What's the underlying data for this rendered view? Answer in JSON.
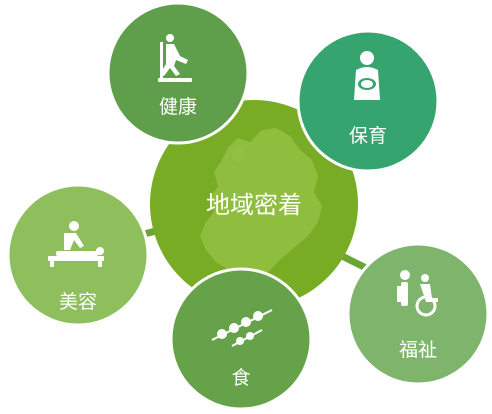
{
  "center": {
    "label": "地域密着",
    "color": "#79ac25",
    "map_color": "#93c143"
  },
  "nodes": [
    {
      "id": "health",
      "label": "健康",
      "icon": "treadmill-icon",
      "color": "#5f9f4c"
    },
    {
      "id": "childcare",
      "label": "保育",
      "icon": "mother-baby-icon",
      "color": "#36a46e"
    },
    {
      "id": "welfare",
      "label": "福祉",
      "icon": "wheelchair-care-icon",
      "color": "#7eb46c"
    },
    {
      "id": "food",
      "label": "食",
      "icon": "skewers-icon",
      "color": "#66a24a"
    },
    {
      "id": "beauty",
      "label": "美容",
      "icon": "massage-icon",
      "color": "#8fbf5d"
    }
  ],
  "connector_color": "#6aa536"
}
